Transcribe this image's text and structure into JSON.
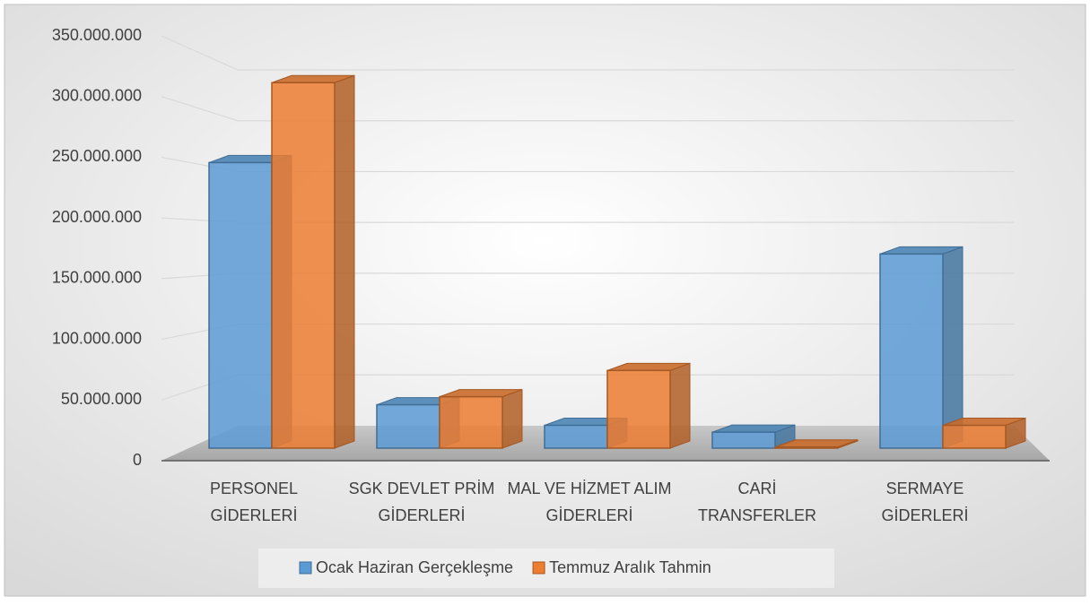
{
  "chart_data": {
    "type": "bar3d",
    "categories": [
      "PERSONEL GİDERLERİ",
      "SGK DEVLET PRİM GİDERLERİ",
      "MAL VE HİZMET ALIM GİDERLERİ",
      "CARİ TRANSFERLER",
      "SERMAYE GİDERLERİ"
    ],
    "series": [
      {
        "name": "Ocak Haziran Gerçekleşme",
        "color": "#5b9bd5",
        "values": [
          250000000,
          38000000,
          20000000,
          14000000,
          170000000
        ]
      },
      {
        "name": "Temmuz Aralık Tahmin",
        "color": "#ed7d31",
        "values": [
          320000000,
          45000000,
          68000000,
          1000000,
          20000000
        ]
      }
    ],
    "ylim": [
      0,
      350000000
    ],
    "yticks": [
      0,
      {
        "value": 50000000,
        "label": "50.000.000"
      },
      {
        "value": 100000000,
        "label": "100.000.000"
      },
      {
        "value": 150000000,
        "label": "150.000.000"
      },
      {
        "value": 200000000,
        "label": "200.000.000"
      },
      {
        "value": 250000000,
        "label": "250.000.000"
      },
      {
        "value": 300000000,
        "label": "300.000.000"
      },
      {
        "value": 350000000,
        "label": "350.000.000"
      }
    ],
    "grid": true,
    "legend": "bottom"
  }
}
